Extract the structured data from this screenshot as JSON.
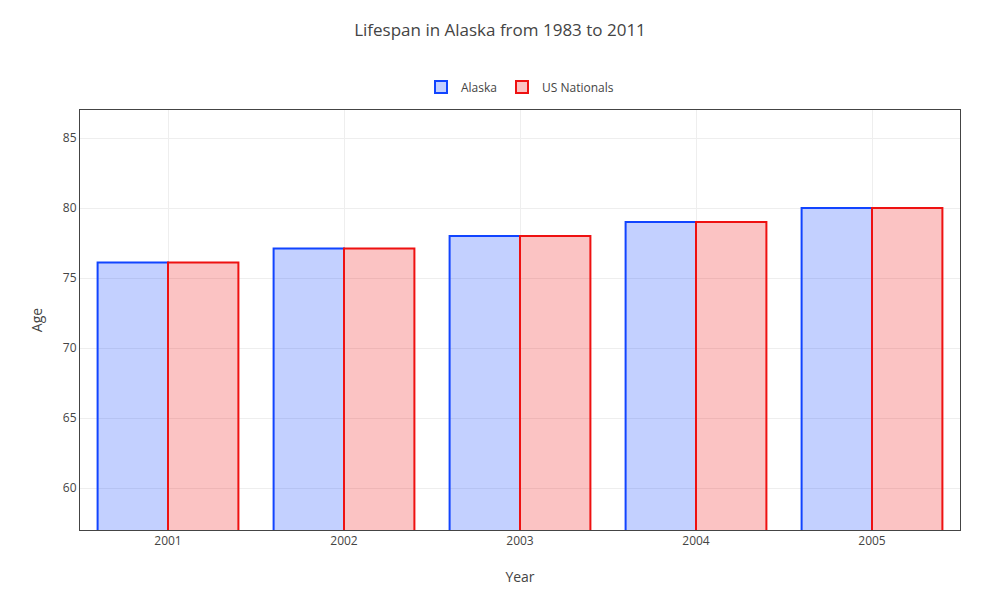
{
  "chart_data": {
    "type": "bar",
    "title": "Lifespan in Alaska from 1983 to 2011",
    "x_label": "Year",
    "y_label": "Age",
    "categories": [
      "2001",
      "2002",
      "2003",
      "2004",
      "2005"
    ],
    "series": [
      {
        "name": "Alaska",
        "color": "#1144ff",
        "values": [
          76.1,
          77.1,
          78.0,
          79.0,
          80.0
        ]
      },
      {
        "name": "US Nationals",
        "color": "#ee1111",
        "values": [
          76.1,
          77.1,
          78.0,
          79.0,
          80.0
        ]
      }
    ],
    "ylim": [
      57,
      87
    ],
    "yticks": [
      60,
      65,
      70,
      75,
      80,
      85
    ],
    "grid": true,
    "legend": "top"
  }
}
